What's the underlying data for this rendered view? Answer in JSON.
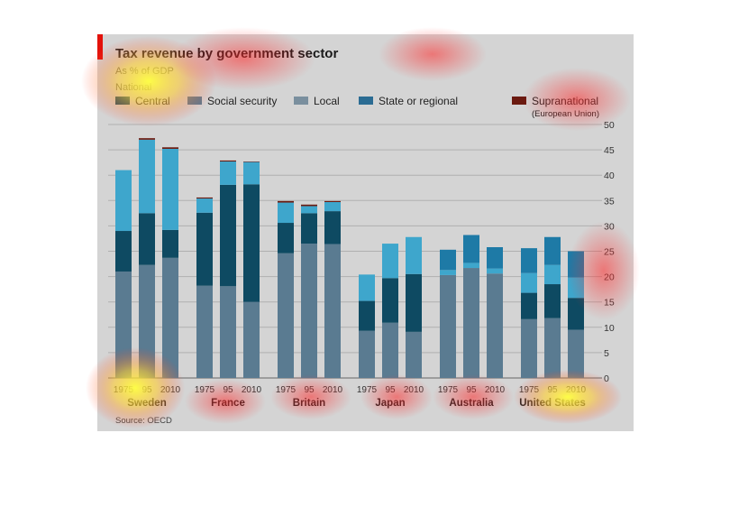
{
  "chart_data": {
    "type": "bar",
    "stacked": true,
    "title": "Tax revenue by government sector",
    "subtitle": "As % of GDP",
    "legend": {
      "heading": "National",
      "placement": "top",
      "items": [
        {
          "label": "Central",
          "color": "#0e4a62"
        },
        {
          "label": "Social security",
          "color": "#5a7b91"
        },
        {
          "label": "Local",
          "color": "#7a8f9e"
        },
        {
          "label": "State or regional",
          "color": "#2b6c93"
        },
        {
          "label": "Supranational",
          "note": "(European Union)",
          "color": "#6b1a10"
        }
      ]
    },
    "y_axis": {
      "position": "right",
      "min": 0,
      "max": 50,
      "ticks": [
        "0",
        "5",
        "10",
        "15",
        "20",
        "25",
        "30",
        "35",
        "40",
        "45",
        "50"
      ]
    },
    "grid": true,
    "groups": [
      {
        "country": "Sweden",
        "bars": [
          {
            "year": "1975",
            "social": 21,
            "central": 8,
            "local": 12,
            "state": 0,
            "supra": 0
          },
          {
            "year": "95",
            "social": 22.3,
            "central": 10.2,
            "local": 14.5,
            "state": 0,
            "supra": 0.3
          },
          {
            "year": "2010",
            "social": 23.7,
            "central": 5.5,
            "local": 16,
            "state": 0,
            "supra": 0.3
          }
        ]
      },
      {
        "country": "France",
        "bars": [
          {
            "year": "1975",
            "social": 18.2,
            "central": 14.4,
            "local": 2.8,
            "state": 0,
            "supra": 0.2
          },
          {
            "year": "95",
            "social": 18.1,
            "central": 20,
            "local": 4.6,
            "state": 0,
            "supra": 0.2
          },
          {
            "year": "2010",
            "social": 15,
            "central": 23.2,
            "local": 4.4,
            "state": 0,
            "supra": 0.1
          }
        ]
      },
      {
        "country": "Britain",
        "bars": [
          {
            "year": "1975",
            "social": 24.6,
            "central": 6,
            "local": 4,
            "state": 0,
            "supra": 0.3
          },
          {
            "year": "95",
            "social": 26.5,
            "central": 6,
            "local": 1.4,
            "state": 0,
            "supra": 0.3
          },
          {
            "year": "2010",
            "social": 26.4,
            "central": 6.5,
            "local": 1.8,
            "state": 0,
            "supra": 0.2
          }
        ]
      },
      {
        "country": "Japan",
        "bars": [
          {
            "year": "1975",
            "social": 9.3,
            "central": 5.9,
            "local": 5.2,
            "state": 0,
            "supra": 0
          },
          {
            "year": "95",
            "social": 10.9,
            "central": 8.8,
            "local": 6.8,
            "state": 0,
            "supra": 0
          },
          {
            "year": "2010",
            "social": 9.1,
            "central": 11.4,
            "local": 7.3,
            "state": 0,
            "supra": 0
          }
        ]
      },
      {
        "country": "Australia",
        "bars": [
          {
            "year": "1975",
            "social": 20.3,
            "central": 0,
            "local": 1,
            "state": 4,
            "supra": 0
          },
          {
            "year": "95",
            "social": 21.7,
            "central": 0,
            "local": 1,
            "state": 5.5,
            "supra": 0
          },
          {
            "year": "2010",
            "social": 20.6,
            "central": 0,
            "local": 1,
            "state": 4.2,
            "supra": 0
          }
        ]
      },
      {
        "country": "United States",
        "bars": [
          {
            "year": "1975",
            "social": 11.6,
            "central": 5.2,
            "local": 3.9,
            "state": 4.9,
            "supra": 0
          },
          {
            "year": "95",
            "social": 11.8,
            "central": 6.7,
            "local": 3.8,
            "state": 5.5,
            "supra": 0
          },
          {
            "year": "2010",
            "social": 9.5,
            "central": 6.3,
            "local": 4,
            "state": 5.2,
            "supra": 0
          }
        ]
      }
    ],
    "source": "Source: OECD"
  },
  "colors": {
    "background": "#d4d4d4",
    "accent_red": "#e3120b",
    "gridline": "#b0b0b0"
  }
}
